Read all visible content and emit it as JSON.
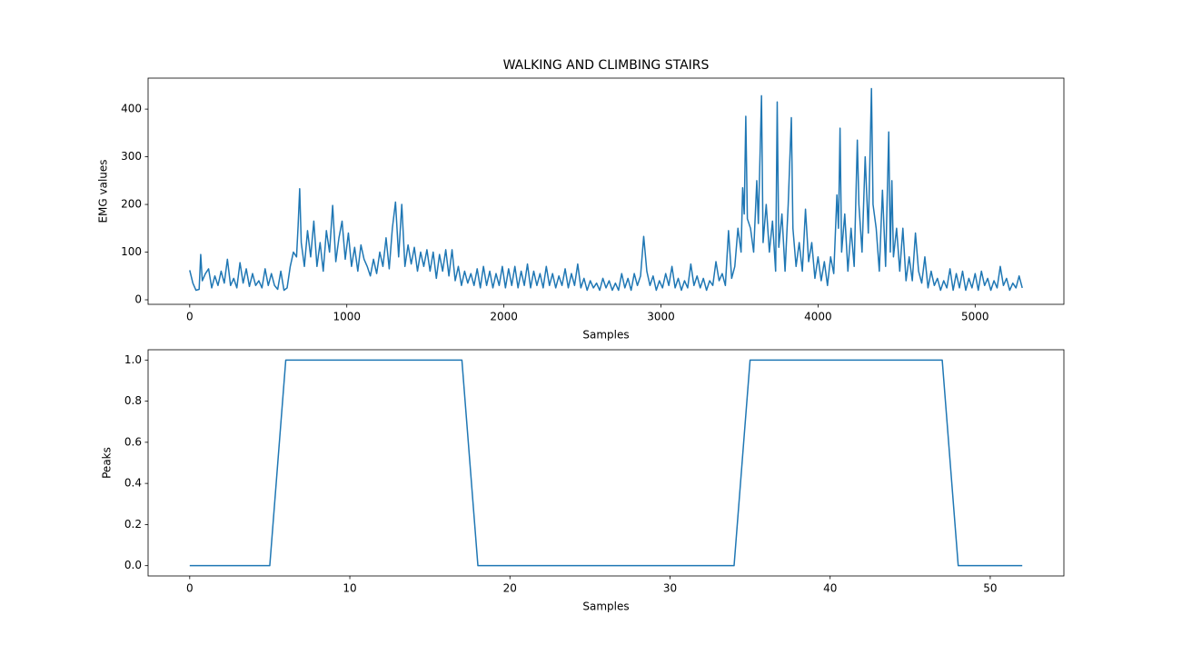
{
  "chart_data": [
    {
      "type": "line",
      "title": "WALKING AND CLIMBING STAIRS",
      "x_label": "Samples",
      "y_label": "EMG values",
      "color": "#1f77b4",
      "xlim": [
        -265,
        5565
      ],
      "ylim": [
        -9.5,
        465
      ],
      "xticks": [
        0,
        1000,
        2000,
        3000,
        4000,
        5000
      ],
      "yticks": [
        0,
        100,
        200,
        300,
        400
      ],
      "x": [
        0,
        20,
        40,
        60,
        70,
        80,
        100,
        120,
        140,
        160,
        180,
        200,
        220,
        240,
        260,
        280,
        300,
        320,
        340,
        360,
        380,
        400,
        420,
        440,
        460,
        480,
        500,
        520,
        540,
        560,
        580,
        600,
        620,
        640,
        660,
        680,
        690,
        700,
        710,
        730,
        750,
        770,
        790,
        810,
        830,
        850,
        870,
        890,
        910,
        930,
        950,
        970,
        990,
        1010,
        1030,
        1050,
        1070,
        1090,
        1110,
        1130,
        1150,
        1170,
        1190,
        1210,
        1230,
        1250,
        1270,
        1290,
        1310,
        1330,
        1350,
        1370,
        1390,
        1410,
        1430,
        1450,
        1470,
        1490,
        1510,
        1530,
        1550,
        1570,
        1590,
        1610,
        1630,
        1650,
        1670,
        1690,
        1710,
        1730,
        1750,
        1770,
        1790,
        1810,
        1830,
        1850,
        1870,
        1890,
        1910,
        1930,
        1950,
        1970,
        1990,
        2010,
        2030,
        2050,
        2070,
        2090,
        2110,
        2130,
        2150,
        2170,
        2190,
        2210,
        2230,
        2250,
        2270,
        2290,
        2310,
        2330,
        2350,
        2370,
        2390,
        2410,
        2430,
        2450,
        2470,
        2490,
        2510,
        2530,
        2550,
        2570,
        2590,
        2610,
        2630,
        2650,
        2670,
        2690,
        2710,
        2730,
        2750,
        2770,
        2790,
        2810,
        2830,
        2850,
        2870,
        2890,
        2910,
        2930,
        2950,
        2970,
        2990,
        3010,
        3030,
        3050,
        3070,
        3090,
        3110,
        3130,
        3150,
        3170,
        3190,
        3210,
        3230,
        3250,
        3270,
        3290,
        3310,
        3330,
        3350,
        3370,
        3390,
        3410,
        3430,
        3450,
        3470,
        3490,
        3510,
        3520,
        3530,
        3540,
        3550,
        3570,
        3590,
        3610,
        3620,
        3640,
        3650,
        3670,
        3690,
        3710,
        3730,
        3740,
        3750,
        3770,
        3790,
        3810,
        3830,
        3840,
        3860,
        3880,
        3900,
        3920,
        3940,
        3960,
        3980,
        4000,
        4020,
        4040,
        4060,
        4080,
        4100,
        4120,
        4130,
        4140,
        4150,
        4170,
        4190,
        4210,
        4230,
        4250,
        4260,
        4280,
        4300,
        4320,
        4340,
        4350,
        4370,
        4390,
        4410,
        4430,
        4450,
        4460,
        4470,
        4480,
        4500,
        4520,
        4540,
        4560,
        4580,
        4600,
        4620,
        4640,
        4660,
        4680,
        4700,
        4720,
        4740,
        4760,
        4780,
        4800,
        4820,
        4840,
        4860,
        4880,
        4900,
        4920,
        4940,
        4960,
        4980,
        5000,
        5020,
        5040,
        5060,
        5080,
        5100,
        5120,
        5140,
        5160,
        5180,
        5200,
        5220,
        5240,
        5260,
        5280,
        5300
      ],
      "values": [
        62,
        35,
        20,
        22,
        95,
        40,
        55,
        65,
        25,
        50,
        30,
        60,
        35,
        85,
        30,
        45,
        25,
        78,
        35,
        65,
        28,
        55,
        30,
        40,
        25,
        65,
        30,
        55,
        30,
        22,
        60,
        20,
        25,
        70,
        100,
        90,
        155,
        233,
        120,
        70,
        145,
        90,
        165,
        70,
        120,
        60,
        145,
        100,
        198,
        80,
        130,
        165,
        85,
        140,
        70,
        110,
        60,
        115,
        85,
        70,
        50,
        85,
        55,
        100,
        70,
        130,
        65,
        150,
        205,
        90,
        200,
        70,
        115,
        75,
        110,
        60,
        100,
        70,
        105,
        60,
        100,
        45,
        95,
        60,
        105,
        50,
        105,
        40,
        70,
        30,
        60,
        35,
        55,
        30,
        65,
        25,
        70,
        30,
        60,
        25,
        55,
        30,
        70,
        25,
        65,
        30,
        70,
        25,
        60,
        30,
        75,
        25,
        60,
        30,
        55,
        25,
        70,
        30,
        55,
        25,
        50,
        30,
        65,
        25,
        55,
        30,
        75,
        25,
        45,
        20,
        40,
        25,
        35,
        20,
        45,
        25,
        40,
        20,
        35,
        20,
        55,
        25,
        45,
        20,
        55,
        30,
        50,
        133,
        60,
        30,
        50,
        20,
        40,
        25,
        55,
        30,
        70,
        25,
        45,
        20,
        40,
        25,
        75,
        30,
        50,
        25,
        45,
        20,
        40,
        30,
        80,
        40,
        55,
        30,
        145,
        45,
        70,
        150,
        100,
        235,
        180,
        385,
        170,
        150,
        100,
        250,
        160,
        428,
        120,
        200,
        100,
        165,
        60,
        415,
        110,
        180,
        60,
        200,
        382,
        150,
        70,
        120,
        60,
        190,
        80,
        120,
        45,
        90,
        40,
        80,
        30,
        90,
        55,
        220,
        150,
        360,
        100,
        180,
        60,
        150,
        70,
        335,
        200,
        100,
        300,
        140,
        443,
        200,
        150,
        60,
        230,
        70,
        352,
        100,
        250,
        90,
        150,
        60,
        150,
        40,
        90,
        40,
        140,
        60,
        35,
        90,
        25,
        60,
        30,
        45,
        20,
        40,
        25,
        65,
        20,
        55,
        25,
        60,
        20,
        45,
        25,
        55,
        20,
        60,
        30,
        45,
        20,
        40,
        25,
        70,
        30,
        45,
        20,
        35,
        25,
        50,
        25
      ]
    },
    {
      "type": "line",
      "x_label": "Samples",
      "y_label": "Peaks",
      "color": "#1f77b4",
      "xlim": [
        -2.6,
        54.6
      ],
      "ylim": [
        -0.05,
        1.05
      ],
      "xticks": [
        0,
        10,
        20,
        30,
        40,
        50
      ],
      "yticks": [
        {
          "value": 0,
          "label": "0.0"
        },
        0.2,
        0.4,
        0.6,
        0.8,
        {
          "value": 1,
          "label": "1.0"
        }
      ],
      "x": [
        0,
        1,
        2,
        3,
        4,
        5,
        6,
        7,
        8,
        9,
        10,
        11,
        12,
        13,
        14,
        15,
        16,
        17,
        18,
        19,
        20,
        21,
        22,
        23,
        24,
        25,
        26,
        27,
        28,
        29,
        30,
        31,
        32,
        33,
        34,
        35,
        36,
        37,
        38,
        39,
        40,
        41,
        42,
        43,
        44,
        45,
        46,
        47,
        48,
        49,
        50,
        51,
        52
      ],
      "values": [
        0,
        0,
        0,
        0,
        0,
        0,
        1,
        1,
        1,
        1,
        1,
        1,
        1,
        1,
        1,
        1,
        1,
        1,
        0,
        0,
        0,
        0,
        0,
        0,
        0,
        0,
        0,
        0,
        0,
        0,
        0,
        0,
        0,
        0,
        0,
        1,
        1,
        1,
        1,
        1,
        1,
        1,
        1,
        1,
        1,
        1,
        1,
        1,
        0,
        0,
        0,
        0,
        0
      ]
    }
  ]
}
